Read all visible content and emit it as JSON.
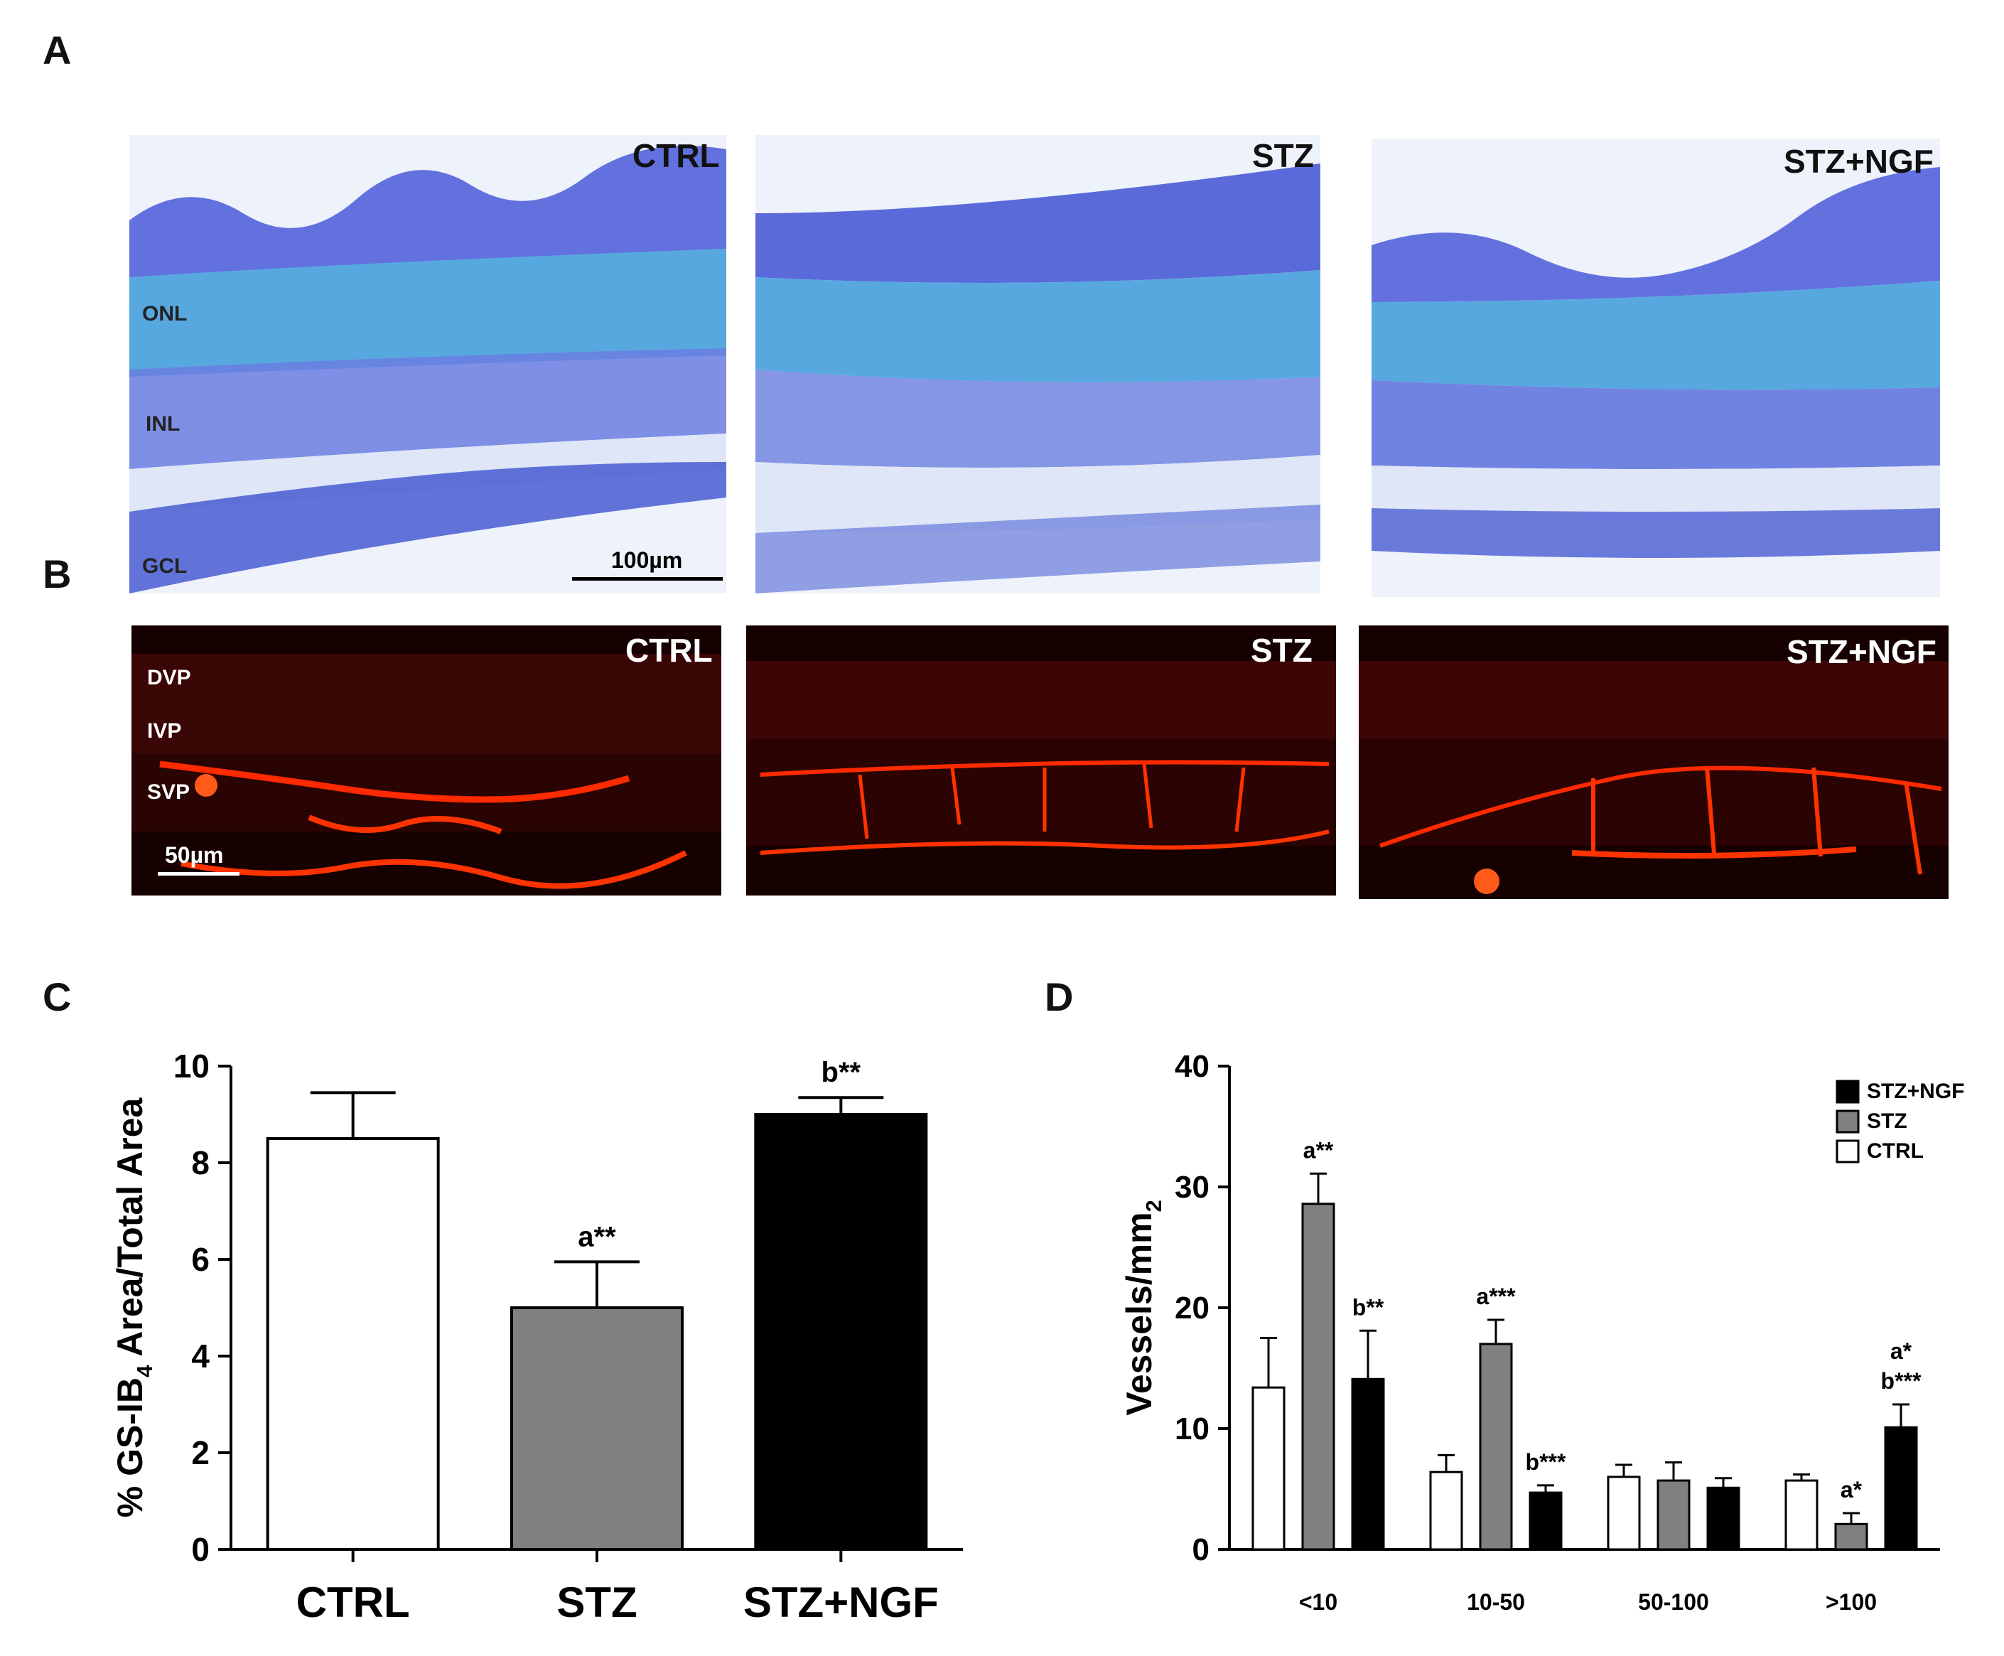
{
  "panel_labels": {
    "a": "A",
    "b": "B",
    "c": "C",
    "d": "D"
  },
  "panel_a": {
    "tiles": [
      {
        "label": "CTRL",
        "layers": [
          "ONL",
          "INL",
          "GCL"
        ],
        "scale_bar": "100µm"
      },
      {
        "label": "STZ"
      },
      {
        "label": "STZ+NGF"
      }
    ]
  },
  "panel_b": {
    "tiles": [
      {
        "label": "CTRL",
        "layers": [
          "DVP",
          "IVP",
          "SVP"
        ],
        "scale_bar": "50µm"
      },
      {
        "label": "STZ"
      },
      {
        "label": "STZ+NGF"
      }
    ]
  },
  "chart_data": [
    {
      "type": "bar",
      "panel": "C",
      "ylabel_parts": [
        "% GS-IB",
        "4",
        " Area/Total Area"
      ],
      "categories": [
        "CTRL",
        "STZ",
        "STZ+NGF"
      ],
      "values": [
        8.5,
        5.0,
        9.0
      ],
      "errors": [
        0.95,
        0.95,
        0.35
      ],
      "annotations": [
        "",
        "a**",
        "b**"
      ],
      "colors": [
        "#ffffff",
        "#808080",
        "#000000"
      ],
      "ylim": [
        0,
        10
      ],
      "yticks": [
        0,
        2,
        4,
        6,
        8,
        10
      ]
    },
    {
      "type": "bar",
      "panel": "D",
      "ylabel_parts": [
        "Vessels/mm",
        "2"
      ],
      "categories": [
        "<10",
        "10-50",
        "50-100",
        ">100"
      ],
      "series": [
        {
          "name": "CTRL",
          "color": "#ffffff",
          "values": [
            13.4,
            6.4,
            6.0,
            5.7
          ],
          "errors": [
            4.1,
            1.4,
            1.0,
            0.5
          ],
          "annotations": [
            [],
            [],
            [],
            []
          ]
        },
        {
          "name": "STZ",
          "color": "#808080",
          "values": [
            28.6,
            17.0,
            5.7,
            2.1
          ],
          "errors": [
            2.5,
            2.0,
            1.5,
            0.9
          ],
          "annotations": [
            [
              "a**"
            ],
            [
              "a***"
            ],
            [],
            [
              "a*"
            ]
          ]
        },
        {
          "name": "STZ+NGF",
          "color": "#000000",
          "values": [
            14.1,
            4.7,
            5.1,
            10.1
          ],
          "errors": [
            4.0,
            0.6,
            0.8,
            1.9
          ],
          "annotations": [
            [
              "b**"
            ],
            [
              "b***"
            ],
            [],
            [
              "a*",
              "b***"
            ]
          ]
        }
      ],
      "legend_order": [
        "STZ+NGF",
        "STZ",
        "CTRL"
      ],
      "ylim": [
        0,
        40
      ],
      "yticks": [
        0,
        10,
        20,
        30,
        40
      ]
    }
  ]
}
